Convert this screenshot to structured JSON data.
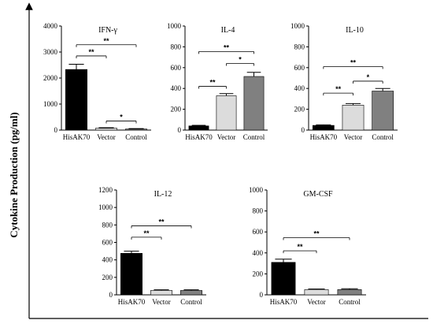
{
  "figure": {
    "ylabel": "Cytokine Production (pg/ml)"
  },
  "chart_data": [
    {
      "type": "bar",
      "title": "IFN-γ",
      "categories": [
        "HisAK70",
        "Vector",
        "Control"
      ],
      "values": [
        2330,
        70,
        40
      ],
      "errors": [
        200,
        20,
        15
      ],
      "ylim": [
        0,
        4000
      ],
      "yticks": [
        "0",
        "1000",
        "2000",
        "3000",
        "4000"
      ],
      "bar_colors": [
        "#000000",
        "#dcdcdc",
        "#808080"
      ],
      "significance": [
        {
          "from": 0,
          "to": 1,
          "label": "**",
          "level": 2850
        },
        {
          "from": 0,
          "to": 2,
          "label": "**",
          "level": 3280
        },
        {
          "from": 1,
          "to": 2,
          "label": "*",
          "level": 350
        }
      ]
    },
    {
      "type": "bar",
      "title": "IL-4",
      "categories": [
        "HisAK70",
        "Vector",
        "Control"
      ],
      "values": [
        40,
        330,
        515
      ],
      "errors": [
        5,
        20,
        40
      ],
      "ylim": [
        0,
        1000
      ],
      "yticks": [
        "0",
        "200",
        "400",
        "600",
        "800",
        "1000"
      ],
      "bar_colors": [
        "#000000",
        "#dcdcdc",
        "#808080"
      ],
      "significance": [
        {
          "from": 0,
          "to": 1,
          "label": "**",
          "level": 420
        },
        {
          "from": 1,
          "to": 2,
          "label": "*",
          "level": 640
        },
        {
          "from": 0,
          "to": 2,
          "label": "**",
          "level": 755
        }
      ]
    },
    {
      "type": "bar",
      "title": "IL-10",
      "categories": [
        "HisAK70",
        "Vector",
        "Control"
      ],
      "values": [
        45,
        240,
        375
      ],
      "errors": [
        5,
        15,
        25
      ],
      "ylim": [
        0,
        1000
      ],
      "yticks": [
        "0",
        "200",
        "400",
        "600",
        "800",
        "1000"
      ],
      "bar_colors": [
        "#000000",
        "#dcdcdc",
        "#808080"
      ],
      "significance": [
        {
          "from": 0,
          "to": 1,
          "label": "**",
          "level": 355
        },
        {
          "from": 1,
          "to": 2,
          "label": "*",
          "level": 470
        },
        {
          "from": 0,
          "to": 2,
          "label": "**",
          "level": 610
        }
      ]
    },
    {
      "type": "bar",
      "title": "IL-12",
      "categories": [
        "HisAK70",
        "Vector",
        "Control"
      ],
      "values": [
        475,
        50,
        50
      ],
      "errors": [
        25,
        8,
        8
      ],
      "ylim": [
        0,
        1200
      ],
      "yticks": [
        "0",
        "200",
        "400",
        "600",
        "800",
        "1000",
        "1200"
      ],
      "bar_colors": [
        "#000000",
        "#dcdcdc",
        "#808080"
      ],
      "significance": [
        {
          "from": 0,
          "to": 1,
          "label": "**",
          "level": 660
        },
        {
          "from": 0,
          "to": 2,
          "label": "**",
          "level": 790
        }
      ]
    },
    {
      "type": "bar",
      "title": "GM-CSF",
      "categories": [
        "HisAK70",
        "Vector",
        "Control"
      ],
      "values": [
        310,
        50,
        50
      ],
      "errors": [
        30,
        5,
        8
      ],
      "ylim": [
        0,
        1000
      ],
      "yticks": [
        "0",
        "200",
        "400",
        "600",
        "800",
        "1000"
      ],
      "bar_colors": [
        "#000000",
        "#dcdcdc",
        "#808080"
      ],
      "significance": [
        {
          "from": 0,
          "to": 1,
          "label": "**",
          "level": 420
        },
        {
          "from": 0,
          "to": 2,
          "label": "**",
          "level": 545
        }
      ]
    }
  ]
}
